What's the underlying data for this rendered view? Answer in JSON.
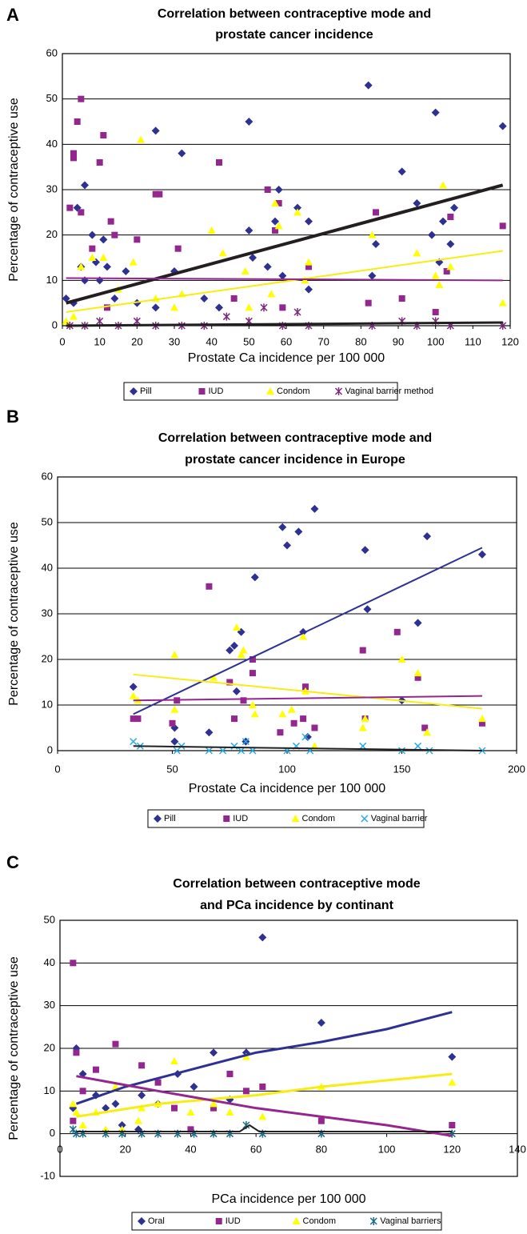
{
  "chart_data": [
    {
      "type": "scatter",
      "panel": "A",
      "title": [
        "Correlation between contraceptive mode and",
        "prostate cancer incidence"
      ],
      "xlabel": "Prostate Ca incidence per 100 000",
      "ylabel": "Percentage of contraceptive use",
      "xlim": [
        0,
        120
      ],
      "ylim": [
        0,
        60
      ],
      "xticks": [
        0,
        10,
        20,
        30,
        40,
        50,
        60,
        70,
        80,
        90,
        100,
        110,
        120
      ],
      "yticks": [
        0,
        10,
        20,
        30,
        40,
        50,
        60
      ],
      "grid": true,
      "series": [
        {
          "name": "Pill",
          "color": "#2e3192",
          "marker": "diamond",
          "x": [
            1,
            3,
            4,
            5,
            6,
            6,
            8,
            9,
            10,
            11,
            12,
            14,
            17,
            20,
            25,
            25,
            30,
            32,
            38,
            42,
            50,
            50,
            51,
            55,
            57,
            58,
            59,
            63,
            66,
            66,
            82,
            83,
            84,
            91,
            95,
            99,
            100,
            101,
            102,
            104,
            105,
            118
          ],
          "values": [
            6,
            5,
            26,
            13,
            31,
            10,
            20,
            14,
            10,
            19,
            13,
            6,
            12,
            5,
            43,
            4,
            12,
            38,
            6,
            4,
            45,
            21,
            15,
            13,
            23,
            30,
            11,
            26,
            23,
            8,
            53,
            11,
            18,
            34,
            27,
            20,
            47,
            14,
            23,
            18,
            26,
            44
          ]
        },
        {
          "name": "IUD",
          "color": "#93278f",
          "marker": "square",
          "x": [
            2,
            3,
            3,
            4,
            5,
            5,
            8,
            10,
            11,
            13,
            14,
            20,
            25,
            26,
            31,
            42,
            55,
            57,
            58,
            59,
            66,
            82,
            84,
            91,
            100,
            103,
            104,
            118,
            12,
            46
          ],
          "values": [
            26,
            38,
            37,
            45,
            50,
            25,
            17,
            36,
            42,
            23,
            20,
            19,
            29,
            29,
            17,
            36,
            30,
            21,
            27,
            4,
            13,
            5,
            25,
            6,
            3,
            12,
            24,
            22,
            4,
            6
          ]
        },
        {
          "name": "Condom",
          "color": "#ffff00",
          "marker": "triangle",
          "x": [
            5,
            8,
            11,
            15,
            21,
            30,
            32,
            40,
            43,
            49,
            56,
            57,
            58,
            63,
            66,
            83,
            95,
            100,
            101,
            102,
            104,
            118,
            19,
            25,
            50,
            65,
            1,
            3
          ],
          "values": [
            13,
            15,
            15,
            8,
            41,
            4,
            7,
            21,
            16,
            12,
            7,
            27,
            22,
            25,
            14,
            20,
            16,
            11,
            9,
            31,
            13,
            5,
            14,
            6,
            4,
            10,
            1,
            2
          ]
        },
        {
          "name": "Vaginal barrier method",
          "color": "#7b2a7b",
          "marker": "star",
          "x": [
            2,
            6,
            10,
            15,
            20,
            25,
            32,
            38,
            44,
            50,
            54,
            59,
            63,
            66,
            83,
            91,
            95,
            100,
            104,
            118
          ],
          "values": [
            0,
            0,
            1,
            0,
            1,
            0,
            0,
            0,
            2,
            1,
            4,
            0,
            3,
            0,
            0,
            1,
            0,
            1,
            0,
            0
          ]
        }
      ],
      "trendlines": [
        {
          "color": "#231f20",
          "width": 4,
          "x": [
            1,
            118
          ],
          "values": [
            5,
            31
          ]
        },
        {
          "color": "#f7ec13",
          "width": 2,
          "x": [
            1,
            118
          ],
          "values": [
            3,
            16.5
          ]
        },
        {
          "color": "#93278f",
          "width": 2,
          "x": [
            1,
            118
          ],
          "values": [
            10.5,
            10
          ]
        },
        {
          "color": "#231f20",
          "width": 3,
          "x": [
            1,
            118
          ],
          "values": [
            0,
            0.7
          ]
        }
      ]
    },
    {
      "type": "scatter",
      "panel": "B",
      "title": [
        "Correlation between contraceptive mode and",
        "prostate cancer incidence in Europe"
      ],
      "xlabel": "Prostate Ca incidence per 100 000",
      "ylabel": "Percentage of contraceptive use",
      "xlim": [
        0,
        200
      ],
      "ylim": [
        0,
        60
      ],
      "xticks": [
        0,
        50,
        100,
        150,
        200
      ],
      "yticks": [
        0,
        10,
        20,
        30,
        40,
        50,
        60
      ],
      "grid": true,
      "series": [
        {
          "name": "Pill",
          "color": "#2e3192",
          "marker": "diamond",
          "x": [
            33,
            51,
            51,
            66,
            75,
            77,
            78,
            80,
            82,
            86,
            98,
            100,
            105,
            107,
            109,
            112,
            134,
            135,
            150,
            157,
            161,
            185
          ],
          "values": [
            14,
            2,
            5,
            4,
            22,
            23,
            13,
            26,
            2,
            38,
            49,
            45,
            48,
            26,
            3,
            53,
            44,
            31,
            11,
            28,
            47,
            43
          ]
        },
        {
          "name": "IUD",
          "color": "#93278f",
          "marker": "square",
          "x": [
            33,
            35,
            50,
            52,
            66,
            75,
            77,
            81,
            85,
            85,
            97,
            103,
            107,
            108,
            112,
            133,
            134,
            148,
            157,
            160,
            185
          ],
          "values": [
            7,
            7,
            6,
            11,
            36,
            15,
            7,
            11,
            20,
            17,
            4,
            6,
            7,
            14,
            5,
            22,
            7,
            26,
            16,
            5,
            6
          ]
        },
        {
          "name": "Condom",
          "color": "#ffff00",
          "marker": "triangle",
          "x": [
            33,
            35,
            51,
            51,
            68,
            78,
            80,
            81,
            85,
            86,
            98,
            102,
            107,
            108,
            112,
            133,
            134,
            150,
            157,
            161,
            185
          ],
          "values": [
            12,
            11,
            21,
            9,
            16,
            27,
            21,
            22,
            10,
            8,
            8,
            9,
            25,
            13,
            1,
            5,
            7,
            20,
            17,
            4,
            7
          ]
        },
        {
          "name": "Vaginal barrier",
          "color": "#29abe2",
          "marker": "x",
          "x": [
            33,
            36,
            52,
            54,
            66,
            72,
            77,
            80,
            82,
            85,
            100,
            104,
            108,
            110,
            133,
            150,
            157,
            162,
            185
          ],
          "values": [
            2,
            1,
            0,
            1,
            0,
            0,
            1,
            0,
            2,
            0,
            0,
            1,
            3,
            0,
            1,
            0,
            1,
            0,
            0
          ]
        }
      ],
      "trendlines": [
        {
          "color": "#2e3192",
          "width": 2,
          "x": [
            33,
            185
          ],
          "values": [
            8,
            44.5
          ]
        },
        {
          "color": "#f7ec13",
          "width": 2,
          "x": [
            33,
            185
          ],
          "values": [
            16.7,
            9.2
          ]
        },
        {
          "color": "#93278f",
          "width": 2,
          "x": [
            33,
            185
          ],
          "values": [
            11,
            12
          ]
        },
        {
          "color": "#231f20",
          "width": 2,
          "x": [
            33,
            185
          ],
          "values": [
            1,
            0
          ]
        }
      ]
    },
    {
      "type": "scatter",
      "panel": "C",
      "title": [
        "Correlation between contraceptive mode",
        "and PCa incidence by continant"
      ],
      "xlabel": "PCa incidence per 100 000",
      "ylabel": "Percentage of contraceptive use",
      "xlim": [
        0,
        140
      ],
      "ylim": [
        -10,
        50
      ],
      "xticks": [
        0,
        20,
        40,
        60,
        80,
        100,
        120,
        140
      ],
      "yticks": [
        -10,
        0,
        10,
        20,
        30,
        40,
        50
      ],
      "grid": true,
      "series": [
        {
          "name": "Oral",
          "color": "#2e3192",
          "marker": "diamond",
          "x": [
            4,
            5,
            7,
            11,
            14,
            17,
            19,
            24,
            25,
            30,
            36,
            41,
            47,
            52,
            57,
            62,
            80,
            120
          ],
          "values": [
            6,
            20,
            14,
            9,
            6,
            7,
            2,
            1,
            9,
            7,
            14,
            11,
            19,
            8,
            19,
            46,
            26,
            18
          ]
        },
        {
          "name": "IUD",
          "color": "#93278f",
          "marker": "square",
          "x": [
            4,
            5,
            7,
            11,
            17,
            25,
            30,
            35,
            40,
            47,
            52,
            57,
            62,
            80,
            120,
            4
          ],
          "values": [
            40,
            19,
            10,
            15,
            21,
            16,
            12,
            6,
            1,
            6,
            14,
            10,
            11,
            3,
            2,
            3
          ]
        },
        {
          "name": "Condom",
          "color": "#ffff00",
          "marker": "triangle",
          "x": [
            4,
            5,
            7,
            11,
            14,
            17,
            19,
            24,
            25,
            30,
            35,
            40,
            47,
            52,
            57,
            62,
            80,
            120
          ],
          "values": [
            7,
            5,
            2,
            5,
            1,
            11,
            1,
            3,
            6,
            7,
            17,
            5,
            7,
            5,
            18,
            4,
            11,
            12
          ]
        },
        {
          "name": "Vaginal barriers",
          "color": "#1a6d8a",
          "marker": "star",
          "x": [
            4,
            5,
            7,
            14,
            19,
            25,
            30,
            36,
            41,
            47,
            52,
            57,
            62,
            80,
            120
          ],
          "values": [
            1,
            0,
            0,
            0,
            0,
            0,
            0,
            0,
            0,
            0,
            0,
            2,
            0,
            0,
            0
          ]
        }
      ],
      "trendlines": [
        {
          "color": "#2e3192",
          "width": 3,
          "x": [
            5,
            20,
            40,
            60,
            80,
            100,
            120
          ],
          "values": [
            7,
            11,
            15,
            19,
            21.5,
            24.5,
            28.5
          ]
        },
        {
          "color": "#f7ec13",
          "width": 3,
          "x": [
            5,
            30,
            60,
            80,
            120
          ],
          "values": [
            4,
            7,
            9,
            11,
            14
          ]
        },
        {
          "color": "#93278f",
          "width": 3,
          "x": [
            5,
            30,
            60,
            80,
            100,
            120
          ],
          "values": [
            13.5,
            10,
            6,
            4,
            2,
            -0.5
          ]
        },
        {
          "color": "#231f20",
          "width": 2,
          "x": [
            5,
            55,
            58,
            61,
            120
          ],
          "values": [
            0.5,
            0.5,
            2,
            0.5,
            0.5
          ]
        }
      ]
    }
  ]
}
